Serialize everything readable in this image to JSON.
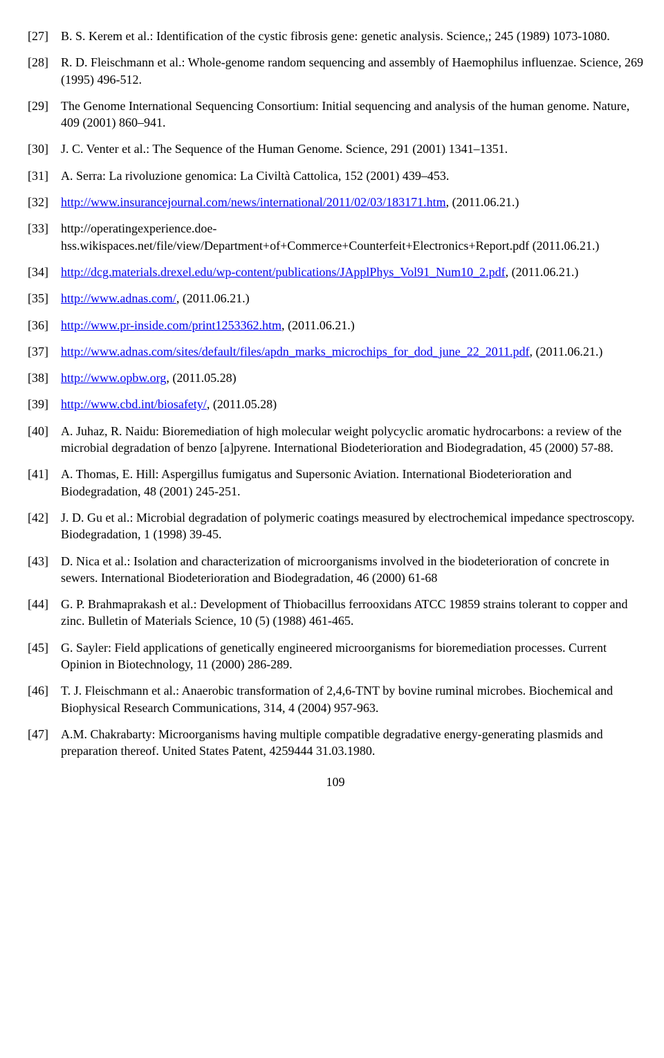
{
  "references": [
    {
      "num": "[27]",
      "segments": [
        {
          "type": "text",
          "value": "B. S. Kerem et al.: Identification of the cystic fibrosis gene: genetic analysis. Science,; 245 (1989) 1073-1080."
        }
      ]
    },
    {
      "num": "[28]",
      "segments": [
        {
          "type": "text",
          "value": "R. D. Fleischmann et al.: Whole-genome random sequencing and assembly of Haemophilus influenzae. Science, 269 (1995) 496-512."
        }
      ]
    },
    {
      "num": "[29]",
      "segments": [
        {
          "type": "text",
          "value": "The Genome International Sequencing Consortium: Initial sequencing and analysis of the human genome. Nature, 409 (2001) 860–941."
        }
      ]
    },
    {
      "num": "[30]",
      "segments": [
        {
          "type": "text",
          "value": "J. C. Venter et al.: The Sequence of the Human Genome. Science, 291 (2001) 1341–1351."
        }
      ]
    },
    {
      "num": "[31]",
      "segments": [
        {
          "type": "text",
          "value": "A. Serra: La rivoluzione genomica: La Civiltà Cattolica, 152 (2001) 439–453."
        }
      ]
    },
    {
      "num": "[32]",
      "segments": [
        {
          "type": "link",
          "value": "http://www.insurancejournal.com/news/international/2011/02/03/183171.htm"
        },
        {
          "type": "text",
          "value": ", (2011.06.21.)"
        }
      ]
    },
    {
      "num": "[33]",
      "segments": [
        {
          "type": "text",
          "value": "http://operatingexperience.doe-hss.wikispaces.net/file/view/Department+of+Commerce+Counterfeit+Electronics+Report.pdf (2011.06.21.)"
        }
      ]
    },
    {
      "num": "[34]",
      "segments": [
        {
          "type": "link",
          "value": "http://dcg.materials.drexel.edu/wp-content/publications/JApplPhys_Vol91_Num10_2.pdf"
        },
        {
          "type": "text",
          "value": ", (2011.06.21.)"
        }
      ]
    },
    {
      "num": "[35]",
      "segments": [
        {
          "type": "link",
          "value": "http://www.adnas.com/"
        },
        {
          "type": "text",
          "value": ", (2011.06.21.)"
        }
      ]
    },
    {
      "num": "[36]",
      "segments": [
        {
          "type": "link",
          "value": "http://www.pr-inside.com/print1253362.htm"
        },
        {
          "type": "text",
          "value": ", (2011.06.21.)"
        }
      ]
    },
    {
      "num": "[37]",
      "segments": [
        {
          "type": "link",
          "value": "http://www.adnas.com/sites/default/files/apdn_marks_microchips_for_dod_june_22_2011.pdf"
        },
        {
          "type": "text",
          "value": ", (2011.06.21.)"
        }
      ]
    },
    {
      "num": "[38]",
      "segments": [
        {
          "type": "link",
          "value": "http://www.opbw.org"
        },
        {
          "type": "text",
          "value": ", (2011.05.28)"
        }
      ]
    },
    {
      "num": "[39]",
      "segments": [
        {
          "type": "link",
          "value": "http://www.cbd.int/biosafety/"
        },
        {
          "type": "text",
          "value": ", (2011.05.28)"
        }
      ]
    },
    {
      "num": "[40]",
      "segments": [
        {
          "type": "text",
          "value": "A. Juhaz, R. Naidu: Bioremediation of high molecular weight polycyclic aromatic hydrocarbons: a review of the microbial degradation of benzo [a]pyrene. International Biodeterioration and Biodegradation, 45 (2000) 57-88."
        }
      ]
    },
    {
      "num": "[41]",
      "segments": [
        {
          "type": "text",
          "value": "A. Thomas, E. Hill: Aspergillus fumigatus and Supersonic Aviation. International Biodeterioration and Biodegradation, 48 (2001) 245-251."
        }
      ]
    },
    {
      "num": "[42]",
      "segments": [
        {
          "type": "text",
          "value": "J. D. Gu et al.: Microbial degradation of polymeric coatings measured by electrochemical impedance spectroscopy. Biodegradation, 1 (1998) 39-45."
        }
      ]
    },
    {
      "num": "[43]",
      "segments": [
        {
          "type": "text",
          "value": "D. Nica et al.: Isolation and characterization of microorganisms involved in the biodeterioration of concrete in sewers. International Biodeterioration and Biodegradation, 46 (2000) 61-68"
        }
      ]
    },
    {
      "num": "[44]",
      "segments": [
        {
          "type": "text",
          "value": "G. P. Brahmaprakash et al.: Development of Thiobacillus ferrooxidans ATCC 19859 strains tolerant to copper and zinc. Bulletin of Materials Science, 10 (5) (1988) 461-465."
        }
      ]
    },
    {
      "num": "[45]",
      "segments": [
        {
          "type": "text",
          "value": "G. Sayler: Field applications of genetically engineered microorganisms for bioremediation processes. Current Opinion in Biotechnology, 11 (2000) 286-289."
        }
      ]
    },
    {
      "num": "[46]",
      "segments": [
        {
          "type": "text",
          "value": "T. J. Fleischmann et al.: Anaerobic transformation of 2,4,6-TNT by bovine ruminal microbes. Biochemical and Biophysical Research Communications, 314, 4 (2004) 957-963."
        }
      ]
    },
    {
      "num": "[47]",
      "segments": [
        {
          "type": "text",
          "value": "A.M. Chakrabarty: Microorganisms having multiple compatible degradative energy-generating plasmids and preparation thereof. United States Patent, 4259444 31.03.1980."
        }
      ]
    }
  ],
  "page_number": "109"
}
